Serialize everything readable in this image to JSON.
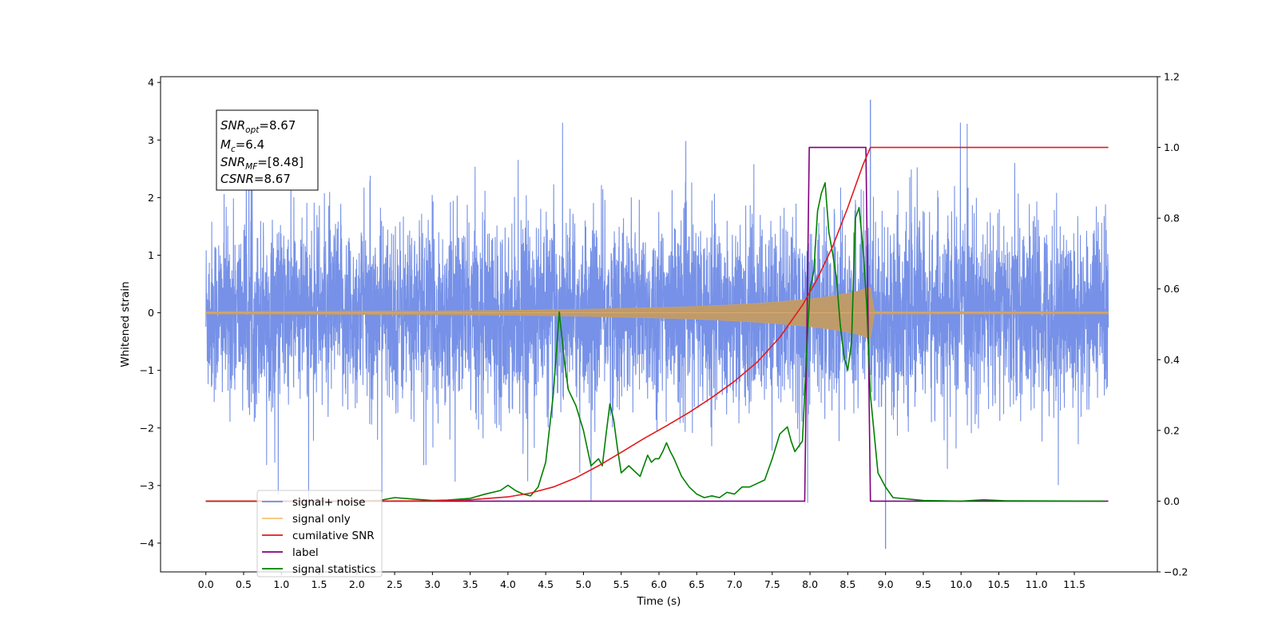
{
  "chart_data": {
    "type": "line",
    "title": "",
    "xlabel": "Time (s)",
    "ylabel": "Whitened strain",
    "xlim": [
      -0.6,
      12.6
    ],
    "ylim": [
      -4.5,
      4.1
    ],
    "y2lim": [
      -0.2,
      1.2
    ],
    "x_ticks": [
      0.0,
      0.5,
      1.0,
      1.5,
      2.0,
      2.5,
      3.0,
      3.5,
      4.0,
      4.5,
      5.0,
      5.5,
      6.0,
      6.5,
      7.0,
      7.5,
      8.0,
      8.5,
      9.0,
      9.5,
      10.0,
      10.5,
      11.0,
      11.5
    ],
    "x_tick_labels": [
      "0.0",
      "0.5",
      "1.0",
      "1.5",
      "2.0",
      "2.5",
      "3.0",
      "3.5",
      "4.0",
      "4.5",
      "5.0",
      "5.5",
      "6.0",
      "6.5",
      "7.0",
      "7.5",
      "8.0",
      "8.5",
      "9.0",
      "9.5",
      "10.0",
      "10.5",
      "11.0",
      "11.5"
    ],
    "y_ticks": [
      -4,
      -3,
      -2,
      -1,
      0,
      1,
      2,
      3,
      4
    ],
    "y_tick_labels": [
      "−4",
      "−3",
      "−2",
      "−1",
      "0",
      "1",
      "2",
      "3",
      "4"
    ],
    "y2_ticks": [
      -0.2,
      0.0,
      0.2,
      0.4,
      0.6,
      0.8,
      1.0,
      1.2
    ],
    "y2_tick_labels": [
      "−0.2",
      "0.0",
      "0.2",
      "0.4",
      "0.6",
      "0.8",
      "1.0",
      "1.2"
    ],
    "grid": false,
    "legend_position": "lower-left",
    "annotation": {
      "snr_opt": {
        "base": "SNR",
        "sub": "opt",
        "value": "=8.67"
      },
      "mc": {
        "base": "M",
        "sub": "c",
        "value": "=6.4"
      },
      "snr_mf": {
        "base": "SNR",
        "sub": "MF",
        "value": "=[8.48]"
      },
      "csnr": {
        "base": "CSNR",
        "value": "=8.67"
      }
    },
    "series": [
      {
        "name": "signal+ noise",
        "axis": "left",
        "color": "#6f8be6",
        "description_points": {
          "x": [
            0.0,
            11.95
          ],
          "envelope_y": [
            -2.0,
            2.0
          ],
          "extreme_peak": {
            "x": 8.8,
            "y": 3.7
          },
          "extreme_trough": {
            "x": 9.0,
            "y": -4.1
          }
        }
      },
      {
        "name": "signal only",
        "axis": "left",
        "color": "#f5a623",
        "envelope": {
          "x": [
            0.0,
            3.0,
            4.0,
            5.0,
            6.0,
            6.5,
            7.0,
            7.5,
            8.0,
            8.3,
            8.6,
            8.8,
            8.85,
            11.95
          ],
          "amp": [
            0.02,
            0.03,
            0.04,
            0.06,
            0.09,
            0.11,
            0.14,
            0.18,
            0.24,
            0.29,
            0.36,
            0.45,
            0.02,
            0.02
          ]
        }
      },
      {
        "name": "cumilative SNR",
        "axis": "right",
        "color": "#e31a1c",
        "x": [
          0.0,
          2.0,
          3.0,
          3.5,
          4.0,
          4.3,
          4.6,
          4.9,
          5.2,
          5.5,
          5.8,
          6.1,
          6.4,
          6.7,
          7.0,
          7.3,
          7.6,
          7.9,
          8.1,
          8.3,
          8.5,
          8.6,
          8.7,
          8.75,
          8.8,
          11.95
        ],
        "values": [
          0.0,
          0.0,
          0.001,
          0.004,
          0.012,
          0.023,
          0.04,
          0.066,
          0.1,
          0.138,
          0.177,
          0.213,
          0.251,
          0.293,
          0.339,
          0.393,
          0.463,
          0.554,
          0.63,
          0.72,
          0.83,
          0.89,
          0.95,
          0.975,
          1.0,
          1.0
        ]
      },
      {
        "name": "label",
        "axis": "right",
        "color": "#800080",
        "x": [
          0.0,
          7.93,
          7.99,
          8.74,
          8.8,
          11.95
        ],
        "values": [
          0.0,
          0.0,
          1.0,
          1.0,
          0.0,
          0.0
        ]
      },
      {
        "name": "signal statistics",
        "axis": "right",
        "color": "#008000",
        "x": [
          0.0,
          2.0,
          2.3,
          2.5,
          2.8,
          3.0,
          3.2,
          3.5,
          3.7,
          3.9,
          4.0,
          4.1,
          4.2,
          4.3,
          4.4,
          4.5,
          4.6,
          4.68,
          4.75,
          4.8,
          4.9,
          5.0,
          5.05,
          5.1,
          5.2,
          5.25,
          5.3,
          5.35,
          5.4,
          5.45,
          5.5,
          5.6,
          5.7,
          5.75,
          5.8,
          5.85,
          5.9,
          5.95,
          6.0,
          6.05,
          6.1,
          6.15,
          6.2,
          6.3,
          6.4,
          6.5,
          6.6,
          6.7,
          6.8,
          6.9,
          7.0,
          7.1,
          7.2,
          7.3,
          7.4,
          7.5,
          7.6,
          7.7,
          7.75,
          7.8,
          7.9,
          7.95,
          8.0,
          8.05,
          8.1,
          8.15,
          8.2,
          8.25,
          8.3,
          8.35,
          8.4,
          8.45,
          8.5,
          8.55,
          8.6,
          8.65,
          8.7,
          8.75,
          8.8,
          8.9,
          9.0,
          9.1,
          9.5,
          10.0,
          10.3,
          10.6,
          11.9
        ],
        "values": [
          0.0,
          0.0,
          0.002,
          0.01,
          0.005,
          0.002,
          0.003,
          0.008,
          0.02,
          0.03,
          0.045,
          0.03,
          0.02,
          0.015,
          0.04,
          0.11,
          0.3,
          0.535,
          0.39,
          0.315,
          0.27,
          0.2,
          0.15,
          0.1,
          0.12,
          0.1,
          0.19,
          0.275,
          0.23,
          0.15,
          0.08,
          0.1,
          0.08,
          0.07,
          0.1,
          0.13,
          0.11,
          0.12,
          0.12,
          0.14,
          0.165,
          0.14,
          0.12,
          0.07,
          0.04,
          0.02,
          0.01,
          0.015,
          0.01,
          0.025,
          0.02,
          0.04,
          0.04,
          0.05,
          0.06,
          0.12,
          0.19,
          0.21,
          0.17,
          0.14,
          0.17,
          0.4,
          0.6,
          0.65,
          0.82,
          0.87,
          0.9,
          0.76,
          0.7,
          0.63,
          0.5,
          0.41,
          0.37,
          0.45,
          0.8,
          0.83,
          0.72,
          0.56,
          0.3,
          0.08,
          0.04,
          0.01,
          0.002,
          0.0,
          0.004,
          0.001,
          0.0
        ]
      }
    ]
  }
}
